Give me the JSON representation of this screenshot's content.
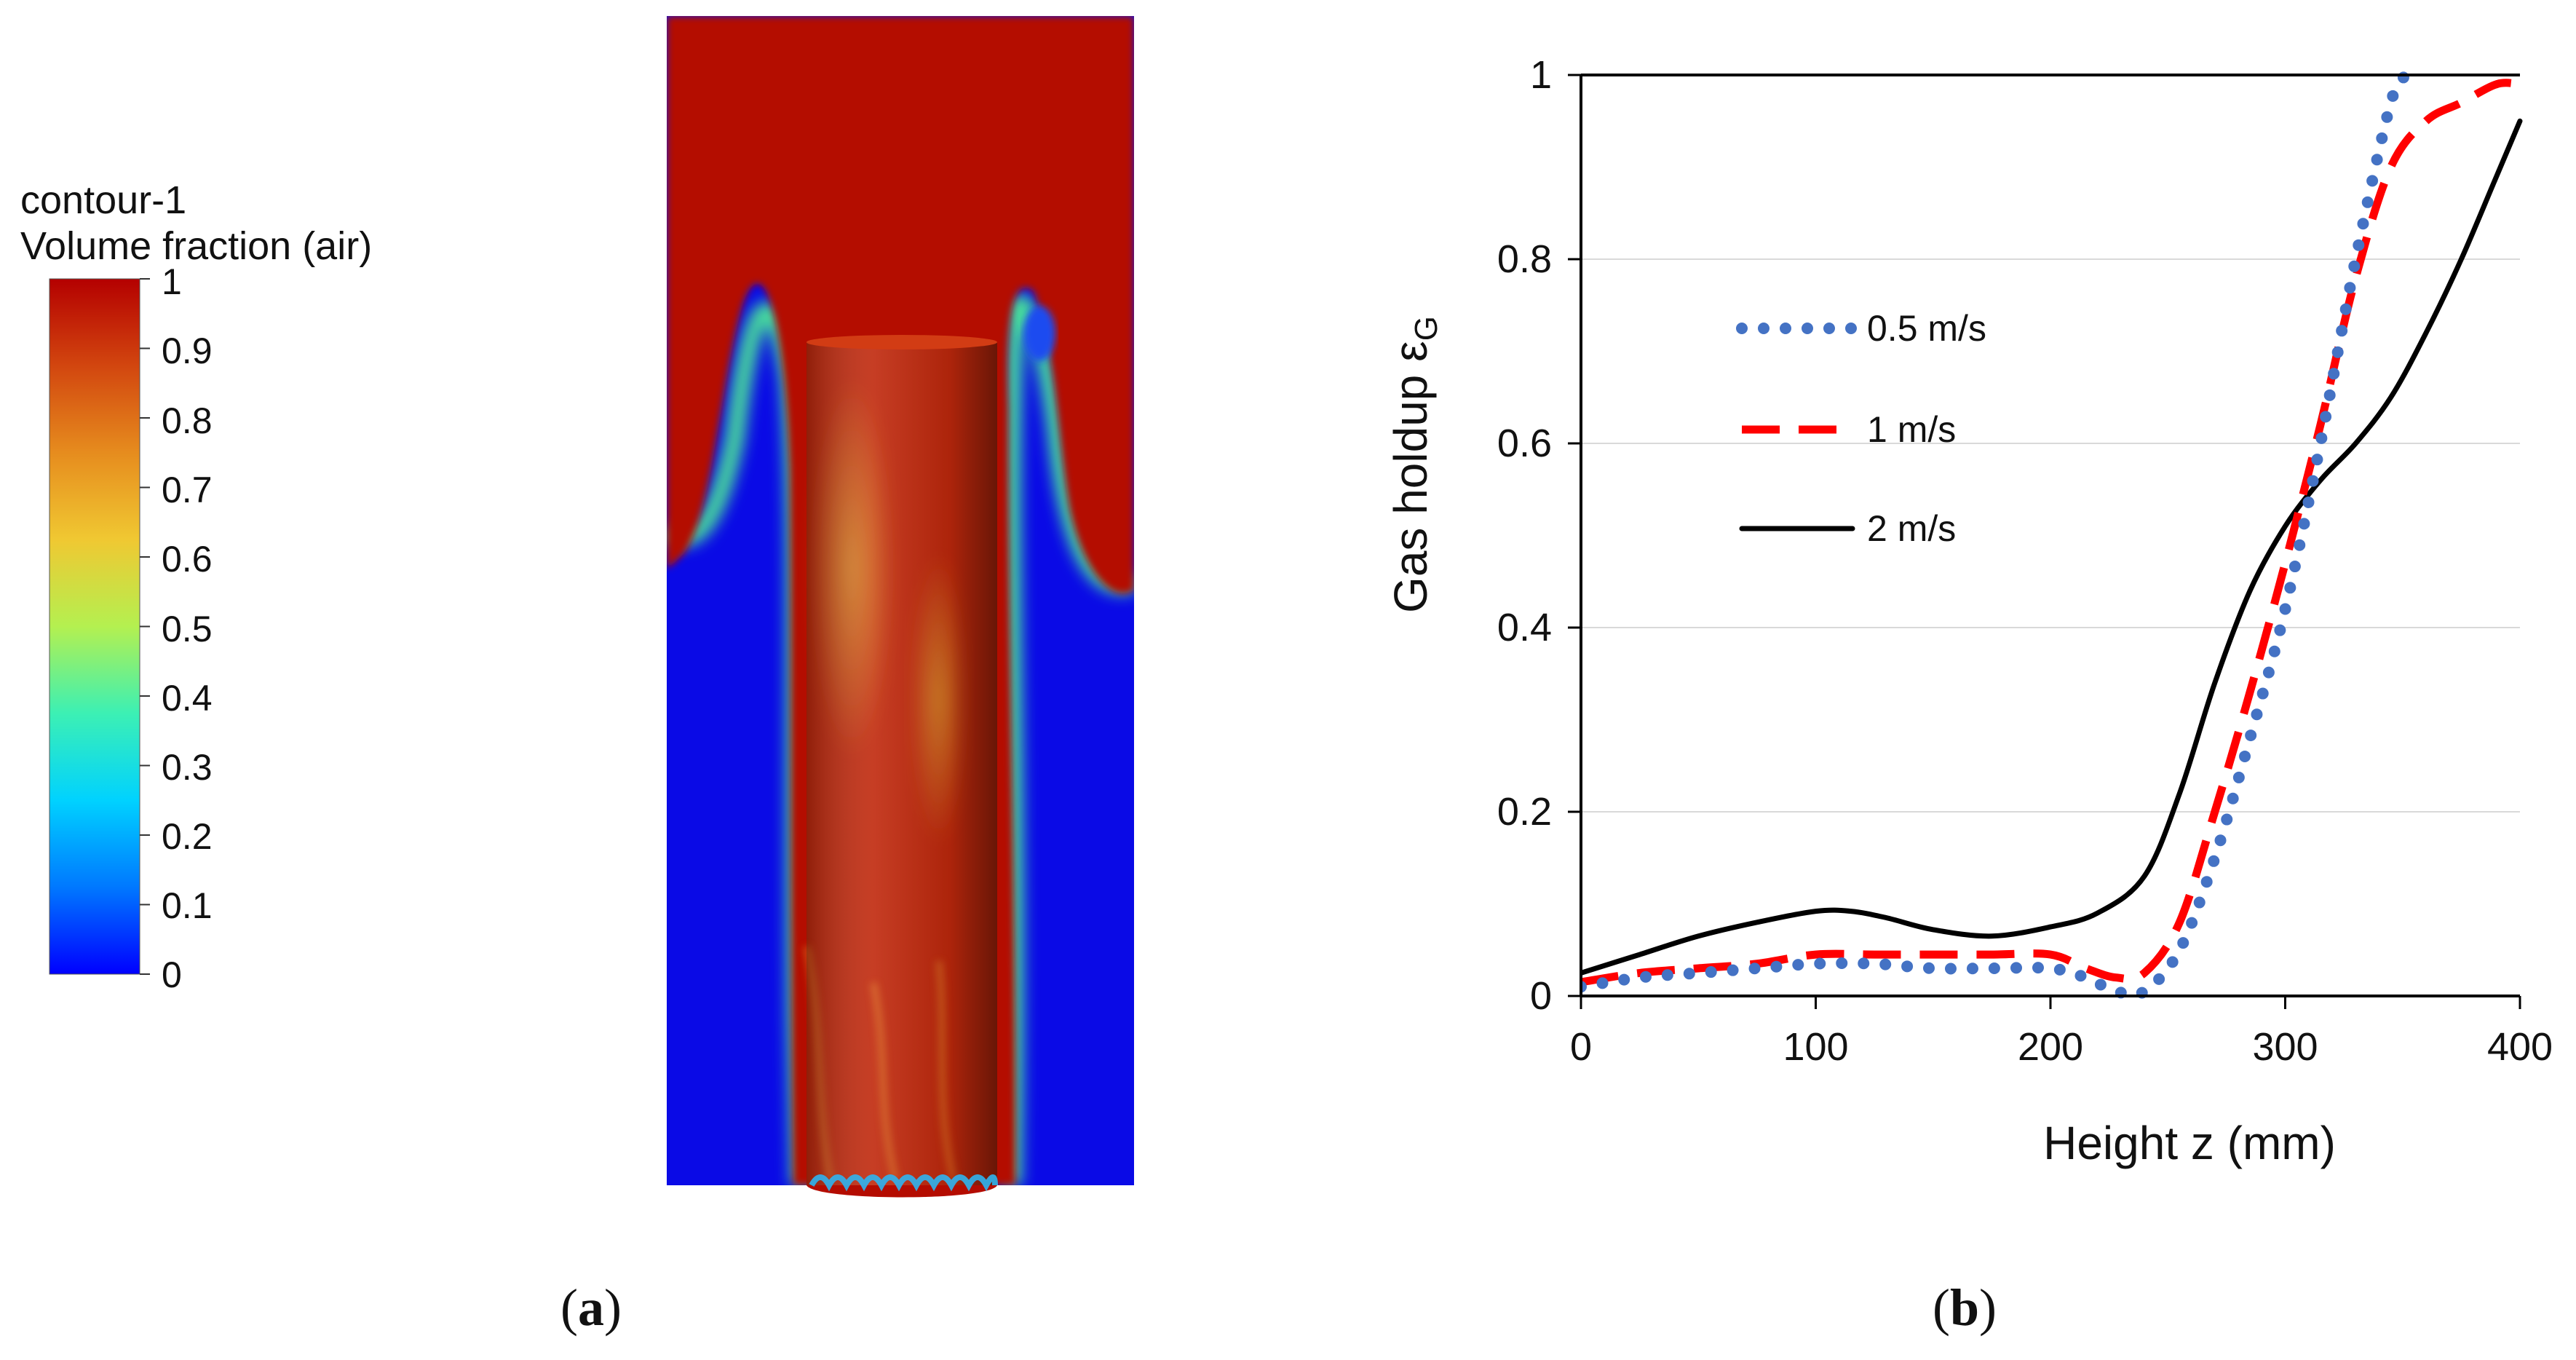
{
  "panel_a": {
    "label_open": "(",
    "label_letter": "a",
    "label_close": ")",
    "colorbar": {
      "title_line1": "contour-1",
      "title_line2": "Volume fraction (air)",
      "ticks": [
        "1",
        "0.9",
        "0.8",
        "0.7",
        "0.6",
        "0.5",
        "0.4",
        "0.3",
        "0.2",
        "0.1",
        "0"
      ],
      "colors": [
        "#0000ff",
        "#0078ff",
        "#00d2ff",
        "#3cf0b4",
        "#b4f050",
        "#f0c832",
        "#e68c1e",
        "#d2460f",
        "#b40000"
      ]
    },
    "colors": {
      "air": "#b40c00",
      "water": "#0a0ae6",
      "interface": "#46dc9b"
    }
  },
  "panel_b": {
    "label_open": "(",
    "label_letter": "b",
    "label_close": ")"
  },
  "chart_data": {
    "type": "line",
    "xlabel": "Height z (mm)",
    "ylabel_main": "Gas holdup ε",
    "ylabel_sub": "G",
    "xlim": [
      0,
      400
    ],
    "ylim": [
      0,
      1
    ],
    "xticks": [
      "0",
      "100",
      "200",
      "300",
      "400"
    ],
    "yticks": [
      "0",
      "0.2",
      "0.4",
      "0.6",
      "0.8",
      "1"
    ],
    "grid": "horizontal",
    "legend_position": "middle-left",
    "series": [
      {
        "name": "0.5 m/s",
        "style": "dotted",
        "color": "#4472c4",
        "x": [
          0,
          25,
          50,
          75,
          100,
          125,
          150,
          175,
          200,
          215,
          228,
          240,
          255,
          270,
          285,
          300,
          315,
          330,
          345,
          352
        ],
        "y": [
          0.01,
          0.02,
          0.025,
          0.03,
          0.035,
          0.035,
          0.03,
          0.03,
          0.03,
          0.02,
          0.005,
          0.005,
          0.05,
          0.15,
          0.28,
          0.42,
          0.6,
          0.8,
          0.97,
          1.0
        ]
      },
      {
        "name": "1 m/s",
        "style": "dashed",
        "color": "#ff0000",
        "x": [
          0,
          25,
          50,
          75,
          100,
          125,
          150,
          175,
          200,
          215,
          228,
          240,
          255,
          270,
          285,
          300,
          315,
          330,
          345,
          360,
          375,
          390,
          400
        ],
        "y": [
          0.015,
          0.025,
          0.03,
          0.035,
          0.045,
          0.045,
          0.045,
          0.045,
          0.045,
          0.03,
          0.02,
          0.025,
          0.08,
          0.2,
          0.33,
          0.47,
          0.62,
          0.78,
          0.9,
          0.95,
          0.97,
          0.99,
          0.99
        ]
      },
      {
        "name": "2 m/s",
        "style": "solid",
        "color": "#000000",
        "x": [
          0,
          25,
          50,
          75,
          100,
          115,
          130,
          150,
          175,
          200,
          220,
          240,
          255,
          270,
          285,
          300,
          315,
          330,
          345,
          360,
          375,
          390,
          400
        ],
        "y": [
          0.025,
          0.045,
          0.065,
          0.08,
          0.092,
          0.092,
          0.085,
          0.072,
          0.065,
          0.075,
          0.09,
          0.13,
          0.22,
          0.34,
          0.44,
          0.51,
          0.56,
          0.6,
          0.65,
          0.72,
          0.8,
          0.89,
          0.95
        ]
      }
    ]
  }
}
